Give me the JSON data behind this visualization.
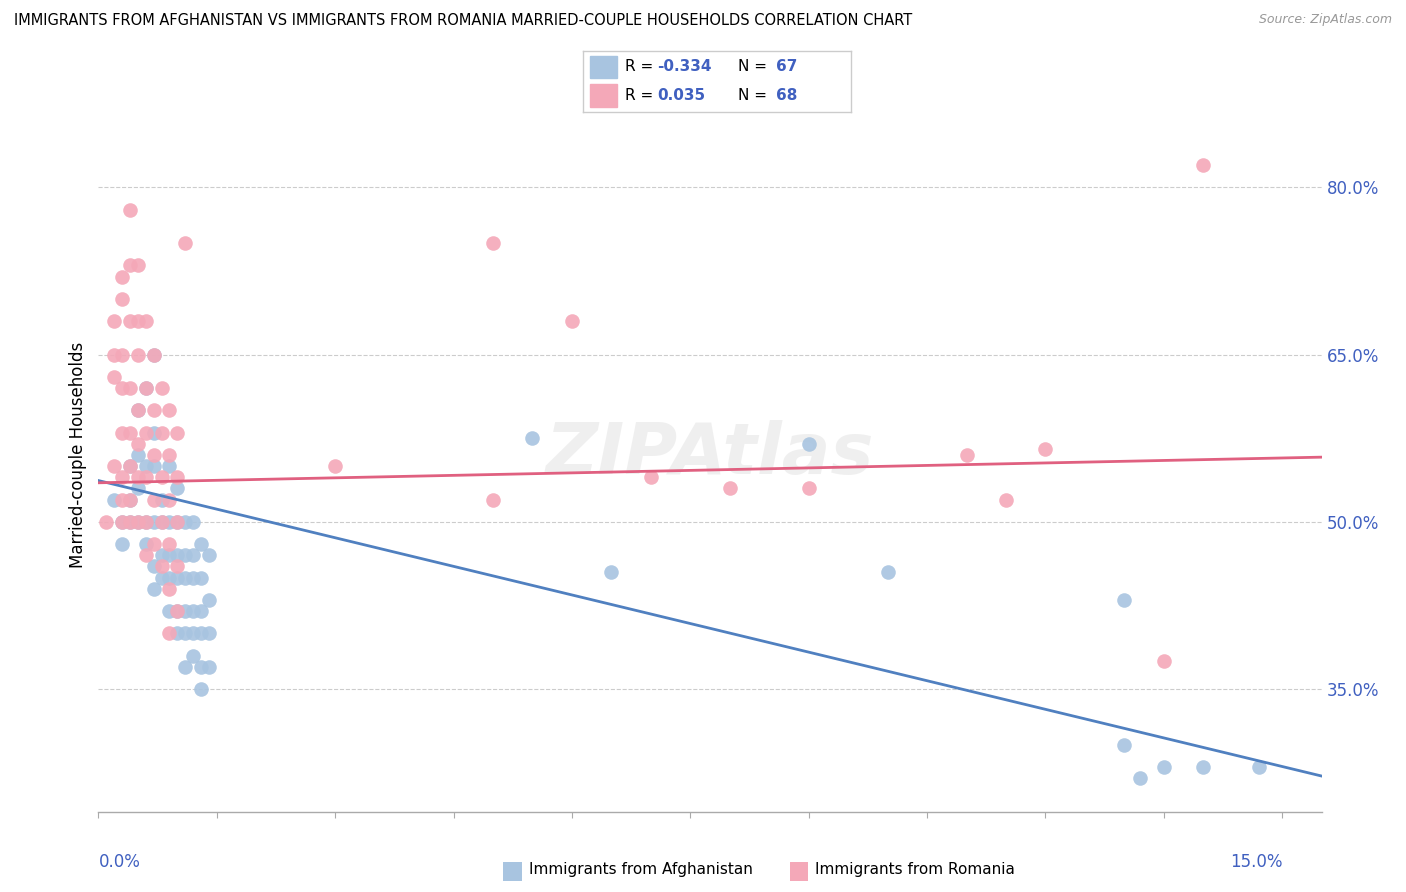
{
  "title": "IMMIGRANTS FROM AFGHANISTAN VS IMMIGRANTS FROM ROMANIA MARRIED-COUPLE HOUSEHOLDS CORRELATION CHART",
  "source": "Source: ZipAtlas.com",
  "ylabel": "Married-couple Households",
  "right_ytick_vals": [
    0.35,
    0.5,
    0.65,
    0.8
  ],
  "right_ytick_labels": [
    "35.0%",
    "50.0%",
    "65.0%",
    "80.0%"
  ],
  "watermark": "ZIPAtlas",
  "legend_blue_r": "-0.334",
  "legend_blue_n": "67",
  "legend_pink_r": "0.035",
  "legend_pink_n": "68",
  "blue_color": "#a8c4e0",
  "pink_color": "#f4a8b8",
  "blue_line_color": "#5080c0",
  "pink_line_color": "#e06080",
  "accent_color": "#4060c0",
  "xlim": [
    0.0,
    0.155
  ],
  "ylim": [
    0.24,
    0.88
  ],
  "blue_trend_x": [
    0.0,
    0.155
  ],
  "blue_trend_y": [
    0.537,
    0.272
  ],
  "pink_trend_x": [
    0.0,
    0.155
  ],
  "pink_trend_y": [
    0.535,
    0.558
  ],
  "blue_scatter": [
    [
      0.002,
      0.52
    ],
    [
      0.003,
      0.48
    ],
    [
      0.003,
      0.5
    ],
    [
      0.004,
      0.55
    ],
    [
      0.004,
      0.5
    ],
    [
      0.004,
      0.52
    ],
    [
      0.005,
      0.6
    ],
    [
      0.005,
      0.53
    ],
    [
      0.005,
      0.56
    ],
    [
      0.005,
      0.5
    ],
    [
      0.006,
      0.62
    ],
    [
      0.006,
      0.55
    ],
    [
      0.006,
      0.5
    ],
    [
      0.006,
      0.48
    ],
    [
      0.007,
      0.65
    ],
    [
      0.007,
      0.58
    ],
    [
      0.007,
      0.55
    ],
    [
      0.007,
      0.5
    ],
    [
      0.007,
      0.46
    ],
    [
      0.007,
      0.44
    ],
    [
      0.008,
      0.52
    ],
    [
      0.008,
      0.5
    ],
    [
      0.008,
      0.47
    ],
    [
      0.008,
      0.45
    ],
    [
      0.009,
      0.55
    ],
    [
      0.009,
      0.5
    ],
    [
      0.009,
      0.47
    ],
    [
      0.009,
      0.45
    ],
    [
      0.009,
      0.42
    ],
    [
      0.01,
      0.53
    ],
    [
      0.01,
      0.5
    ],
    [
      0.01,
      0.47
    ],
    [
      0.01,
      0.45
    ],
    [
      0.01,
      0.42
    ],
    [
      0.01,
      0.4
    ],
    [
      0.011,
      0.5
    ],
    [
      0.011,
      0.47
    ],
    [
      0.011,
      0.45
    ],
    [
      0.011,
      0.42
    ],
    [
      0.011,
      0.4
    ],
    [
      0.011,
      0.37
    ],
    [
      0.012,
      0.5
    ],
    [
      0.012,
      0.47
    ],
    [
      0.012,
      0.45
    ],
    [
      0.012,
      0.42
    ],
    [
      0.012,
      0.4
    ],
    [
      0.012,
      0.38
    ],
    [
      0.013,
      0.48
    ],
    [
      0.013,
      0.45
    ],
    [
      0.013,
      0.42
    ],
    [
      0.013,
      0.4
    ],
    [
      0.013,
      0.37
    ],
    [
      0.013,
      0.35
    ],
    [
      0.014,
      0.47
    ],
    [
      0.014,
      0.43
    ],
    [
      0.014,
      0.4
    ],
    [
      0.014,
      0.37
    ],
    [
      0.055,
      0.575
    ],
    [
      0.065,
      0.455
    ],
    [
      0.09,
      0.57
    ],
    [
      0.1,
      0.455
    ],
    [
      0.13,
      0.43
    ],
    [
      0.13,
      0.3
    ],
    [
      0.132,
      0.27
    ],
    [
      0.135,
      0.28
    ],
    [
      0.14,
      0.28
    ],
    [
      0.147,
      0.28
    ]
  ],
  "pink_scatter": [
    [
      0.001,
      0.5
    ],
    [
      0.002,
      0.65
    ],
    [
      0.002,
      0.68
    ],
    [
      0.002,
      0.63
    ],
    [
      0.002,
      0.55
    ],
    [
      0.003,
      0.72
    ],
    [
      0.003,
      0.7
    ],
    [
      0.003,
      0.65
    ],
    [
      0.003,
      0.62
    ],
    [
      0.003,
      0.58
    ],
    [
      0.003,
      0.54
    ],
    [
      0.003,
      0.52
    ],
    [
      0.003,
      0.5
    ],
    [
      0.004,
      0.78
    ],
    [
      0.004,
      0.73
    ],
    [
      0.004,
      0.68
    ],
    [
      0.004,
      0.62
    ],
    [
      0.004,
      0.58
    ],
    [
      0.004,
      0.55
    ],
    [
      0.004,
      0.52
    ],
    [
      0.004,
      0.5
    ],
    [
      0.005,
      0.73
    ],
    [
      0.005,
      0.68
    ],
    [
      0.005,
      0.65
    ],
    [
      0.005,
      0.6
    ],
    [
      0.005,
      0.57
    ],
    [
      0.005,
      0.54
    ],
    [
      0.005,
      0.5
    ],
    [
      0.006,
      0.68
    ],
    [
      0.006,
      0.62
    ],
    [
      0.006,
      0.58
    ],
    [
      0.006,
      0.54
    ],
    [
      0.006,
      0.5
    ],
    [
      0.006,
      0.47
    ],
    [
      0.007,
      0.65
    ],
    [
      0.007,
      0.6
    ],
    [
      0.007,
      0.56
    ],
    [
      0.007,
      0.52
    ],
    [
      0.007,
      0.48
    ],
    [
      0.008,
      0.62
    ],
    [
      0.008,
      0.58
    ],
    [
      0.008,
      0.54
    ],
    [
      0.008,
      0.5
    ],
    [
      0.008,
      0.46
    ],
    [
      0.009,
      0.6
    ],
    [
      0.009,
      0.56
    ],
    [
      0.009,
      0.52
    ],
    [
      0.009,
      0.48
    ],
    [
      0.009,
      0.44
    ],
    [
      0.009,
      0.4
    ],
    [
      0.01,
      0.58
    ],
    [
      0.01,
      0.54
    ],
    [
      0.01,
      0.5
    ],
    [
      0.01,
      0.46
    ],
    [
      0.01,
      0.42
    ],
    [
      0.011,
      0.75
    ],
    [
      0.03,
      0.55
    ],
    [
      0.05,
      0.75
    ],
    [
      0.05,
      0.52
    ],
    [
      0.06,
      0.68
    ],
    [
      0.07,
      0.54
    ],
    [
      0.08,
      0.53
    ],
    [
      0.09,
      0.53
    ],
    [
      0.11,
      0.56
    ],
    [
      0.115,
      0.52
    ],
    [
      0.12,
      0.565
    ],
    [
      0.135,
      0.375
    ],
    [
      0.14,
      0.82
    ]
  ]
}
